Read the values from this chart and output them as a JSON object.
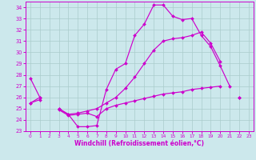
{
  "xlabel": "Windchill (Refroidissement éolien,°C)",
  "bg_color": "#cce8ec",
  "line_color": "#cc00cc",
  "grid_color": "#aacccc",
  "xlim": [
    -0.5,
    23.5
  ],
  "ylim": [
    23,
    34.5
  ],
  "yticks": [
    23,
    24,
    25,
    26,
    27,
    28,
    29,
    30,
    31,
    32,
    33,
    34
  ],
  "xticks": [
    0,
    1,
    2,
    3,
    4,
    5,
    6,
    7,
    8,
    9,
    10,
    11,
    12,
    13,
    14,
    15,
    16,
    17,
    18,
    19,
    20,
    21,
    22,
    23
  ],
  "s1": [
    27.7,
    26.0,
    null,
    25.0,
    24.5,
    23.4,
    23.4,
    23.5,
    26.7,
    28.5,
    29.0,
    31.5,
    32.5,
    34.2,
    34.2,
    33.2,
    32.9,
    33.0,
    31.5,
    30.5,
    28.8,
    27.0,
    null,
    null
  ],
  "s2": [
    25.5,
    25.8,
    null,
    24.9,
    24.4,
    24.5,
    24.6,
    24.3,
    25.0,
    25.3,
    25.5,
    25.7,
    25.9,
    26.1,
    26.3,
    26.4,
    26.5,
    26.7,
    26.8,
    26.9,
    27.0,
    null,
    26.0,
    null
  ],
  "s3": [
    25.5,
    26.0,
    null,
    25.0,
    24.5,
    24.6,
    24.8,
    25.0,
    25.5,
    26.0,
    26.8,
    27.8,
    29.0,
    30.2,
    31.0,
    31.2,
    31.3,
    31.5,
    31.8,
    30.8,
    29.2,
    null,
    26.0,
    null
  ]
}
